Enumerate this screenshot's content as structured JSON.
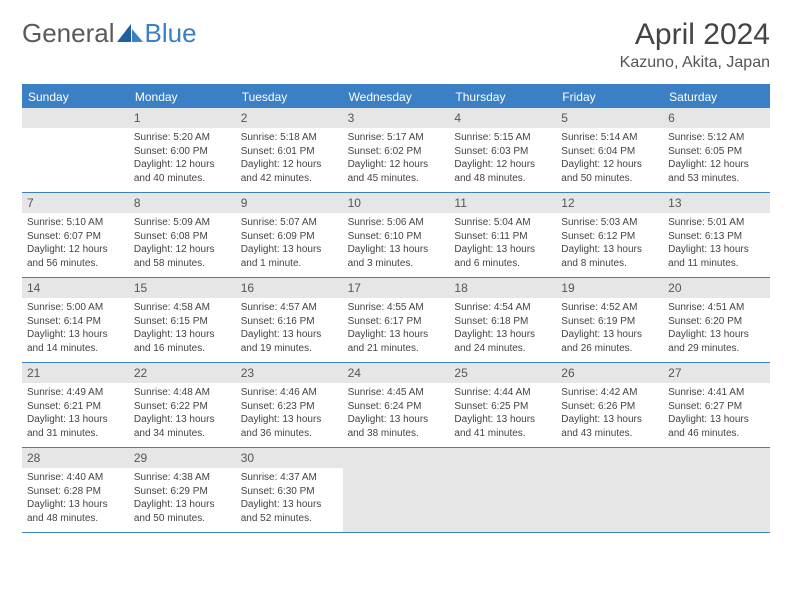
{
  "logo": {
    "text1": "General",
    "text2": "Blue"
  },
  "title": "April 2024",
  "location": "Kazuno, Akita, Japan",
  "colors": {
    "accent": "#3b7fc4",
    "header_bg": "#e6e6e6",
    "text": "#444444",
    "bg": "#ffffff"
  },
  "weekdays": [
    "Sunday",
    "Monday",
    "Tuesday",
    "Wednesday",
    "Thursday",
    "Friday",
    "Saturday"
  ],
  "weeks": [
    [
      null,
      {
        "n": "1",
        "sunrise": "Sunrise: 5:20 AM",
        "sunset": "Sunset: 6:00 PM",
        "daylight": "Daylight: 12 hours and 40 minutes."
      },
      {
        "n": "2",
        "sunrise": "Sunrise: 5:18 AM",
        "sunset": "Sunset: 6:01 PM",
        "daylight": "Daylight: 12 hours and 42 minutes."
      },
      {
        "n": "3",
        "sunrise": "Sunrise: 5:17 AM",
        "sunset": "Sunset: 6:02 PM",
        "daylight": "Daylight: 12 hours and 45 minutes."
      },
      {
        "n": "4",
        "sunrise": "Sunrise: 5:15 AM",
        "sunset": "Sunset: 6:03 PM",
        "daylight": "Daylight: 12 hours and 48 minutes."
      },
      {
        "n": "5",
        "sunrise": "Sunrise: 5:14 AM",
        "sunset": "Sunset: 6:04 PM",
        "daylight": "Daylight: 12 hours and 50 minutes."
      },
      {
        "n": "6",
        "sunrise": "Sunrise: 5:12 AM",
        "sunset": "Sunset: 6:05 PM",
        "daylight": "Daylight: 12 hours and 53 minutes."
      }
    ],
    [
      {
        "n": "7",
        "sunrise": "Sunrise: 5:10 AM",
        "sunset": "Sunset: 6:07 PM",
        "daylight": "Daylight: 12 hours and 56 minutes."
      },
      {
        "n": "8",
        "sunrise": "Sunrise: 5:09 AM",
        "sunset": "Sunset: 6:08 PM",
        "daylight": "Daylight: 12 hours and 58 minutes."
      },
      {
        "n": "9",
        "sunrise": "Sunrise: 5:07 AM",
        "sunset": "Sunset: 6:09 PM",
        "daylight": "Daylight: 13 hours and 1 minute."
      },
      {
        "n": "10",
        "sunrise": "Sunrise: 5:06 AM",
        "sunset": "Sunset: 6:10 PM",
        "daylight": "Daylight: 13 hours and 3 minutes."
      },
      {
        "n": "11",
        "sunrise": "Sunrise: 5:04 AM",
        "sunset": "Sunset: 6:11 PM",
        "daylight": "Daylight: 13 hours and 6 minutes."
      },
      {
        "n": "12",
        "sunrise": "Sunrise: 5:03 AM",
        "sunset": "Sunset: 6:12 PM",
        "daylight": "Daylight: 13 hours and 8 minutes."
      },
      {
        "n": "13",
        "sunrise": "Sunrise: 5:01 AM",
        "sunset": "Sunset: 6:13 PM",
        "daylight": "Daylight: 13 hours and 11 minutes."
      }
    ],
    [
      {
        "n": "14",
        "sunrise": "Sunrise: 5:00 AM",
        "sunset": "Sunset: 6:14 PM",
        "daylight": "Daylight: 13 hours and 14 minutes."
      },
      {
        "n": "15",
        "sunrise": "Sunrise: 4:58 AM",
        "sunset": "Sunset: 6:15 PM",
        "daylight": "Daylight: 13 hours and 16 minutes."
      },
      {
        "n": "16",
        "sunrise": "Sunrise: 4:57 AM",
        "sunset": "Sunset: 6:16 PM",
        "daylight": "Daylight: 13 hours and 19 minutes."
      },
      {
        "n": "17",
        "sunrise": "Sunrise: 4:55 AM",
        "sunset": "Sunset: 6:17 PM",
        "daylight": "Daylight: 13 hours and 21 minutes."
      },
      {
        "n": "18",
        "sunrise": "Sunrise: 4:54 AM",
        "sunset": "Sunset: 6:18 PM",
        "daylight": "Daylight: 13 hours and 24 minutes."
      },
      {
        "n": "19",
        "sunrise": "Sunrise: 4:52 AM",
        "sunset": "Sunset: 6:19 PM",
        "daylight": "Daylight: 13 hours and 26 minutes."
      },
      {
        "n": "20",
        "sunrise": "Sunrise: 4:51 AM",
        "sunset": "Sunset: 6:20 PM",
        "daylight": "Daylight: 13 hours and 29 minutes."
      }
    ],
    [
      {
        "n": "21",
        "sunrise": "Sunrise: 4:49 AM",
        "sunset": "Sunset: 6:21 PM",
        "daylight": "Daylight: 13 hours and 31 minutes."
      },
      {
        "n": "22",
        "sunrise": "Sunrise: 4:48 AM",
        "sunset": "Sunset: 6:22 PM",
        "daylight": "Daylight: 13 hours and 34 minutes."
      },
      {
        "n": "23",
        "sunrise": "Sunrise: 4:46 AM",
        "sunset": "Sunset: 6:23 PM",
        "daylight": "Daylight: 13 hours and 36 minutes."
      },
      {
        "n": "24",
        "sunrise": "Sunrise: 4:45 AM",
        "sunset": "Sunset: 6:24 PM",
        "daylight": "Daylight: 13 hours and 38 minutes."
      },
      {
        "n": "25",
        "sunrise": "Sunrise: 4:44 AM",
        "sunset": "Sunset: 6:25 PM",
        "daylight": "Daylight: 13 hours and 41 minutes."
      },
      {
        "n": "26",
        "sunrise": "Sunrise: 4:42 AM",
        "sunset": "Sunset: 6:26 PM",
        "daylight": "Daylight: 13 hours and 43 minutes."
      },
      {
        "n": "27",
        "sunrise": "Sunrise: 4:41 AM",
        "sunset": "Sunset: 6:27 PM",
        "daylight": "Daylight: 13 hours and 46 minutes."
      }
    ],
    [
      {
        "n": "28",
        "sunrise": "Sunrise: 4:40 AM",
        "sunset": "Sunset: 6:28 PM",
        "daylight": "Daylight: 13 hours and 48 minutes."
      },
      {
        "n": "29",
        "sunrise": "Sunrise: 4:38 AM",
        "sunset": "Sunset: 6:29 PM",
        "daylight": "Daylight: 13 hours and 50 minutes."
      },
      {
        "n": "30",
        "sunrise": "Sunrise: 4:37 AM",
        "sunset": "Sunset: 6:30 PM",
        "daylight": "Daylight: 13 hours and 52 minutes."
      },
      {
        "trail": true
      },
      {
        "trail": true
      },
      {
        "trail": true
      },
      {
        "trail": true
      }
    ]
  ]
}
